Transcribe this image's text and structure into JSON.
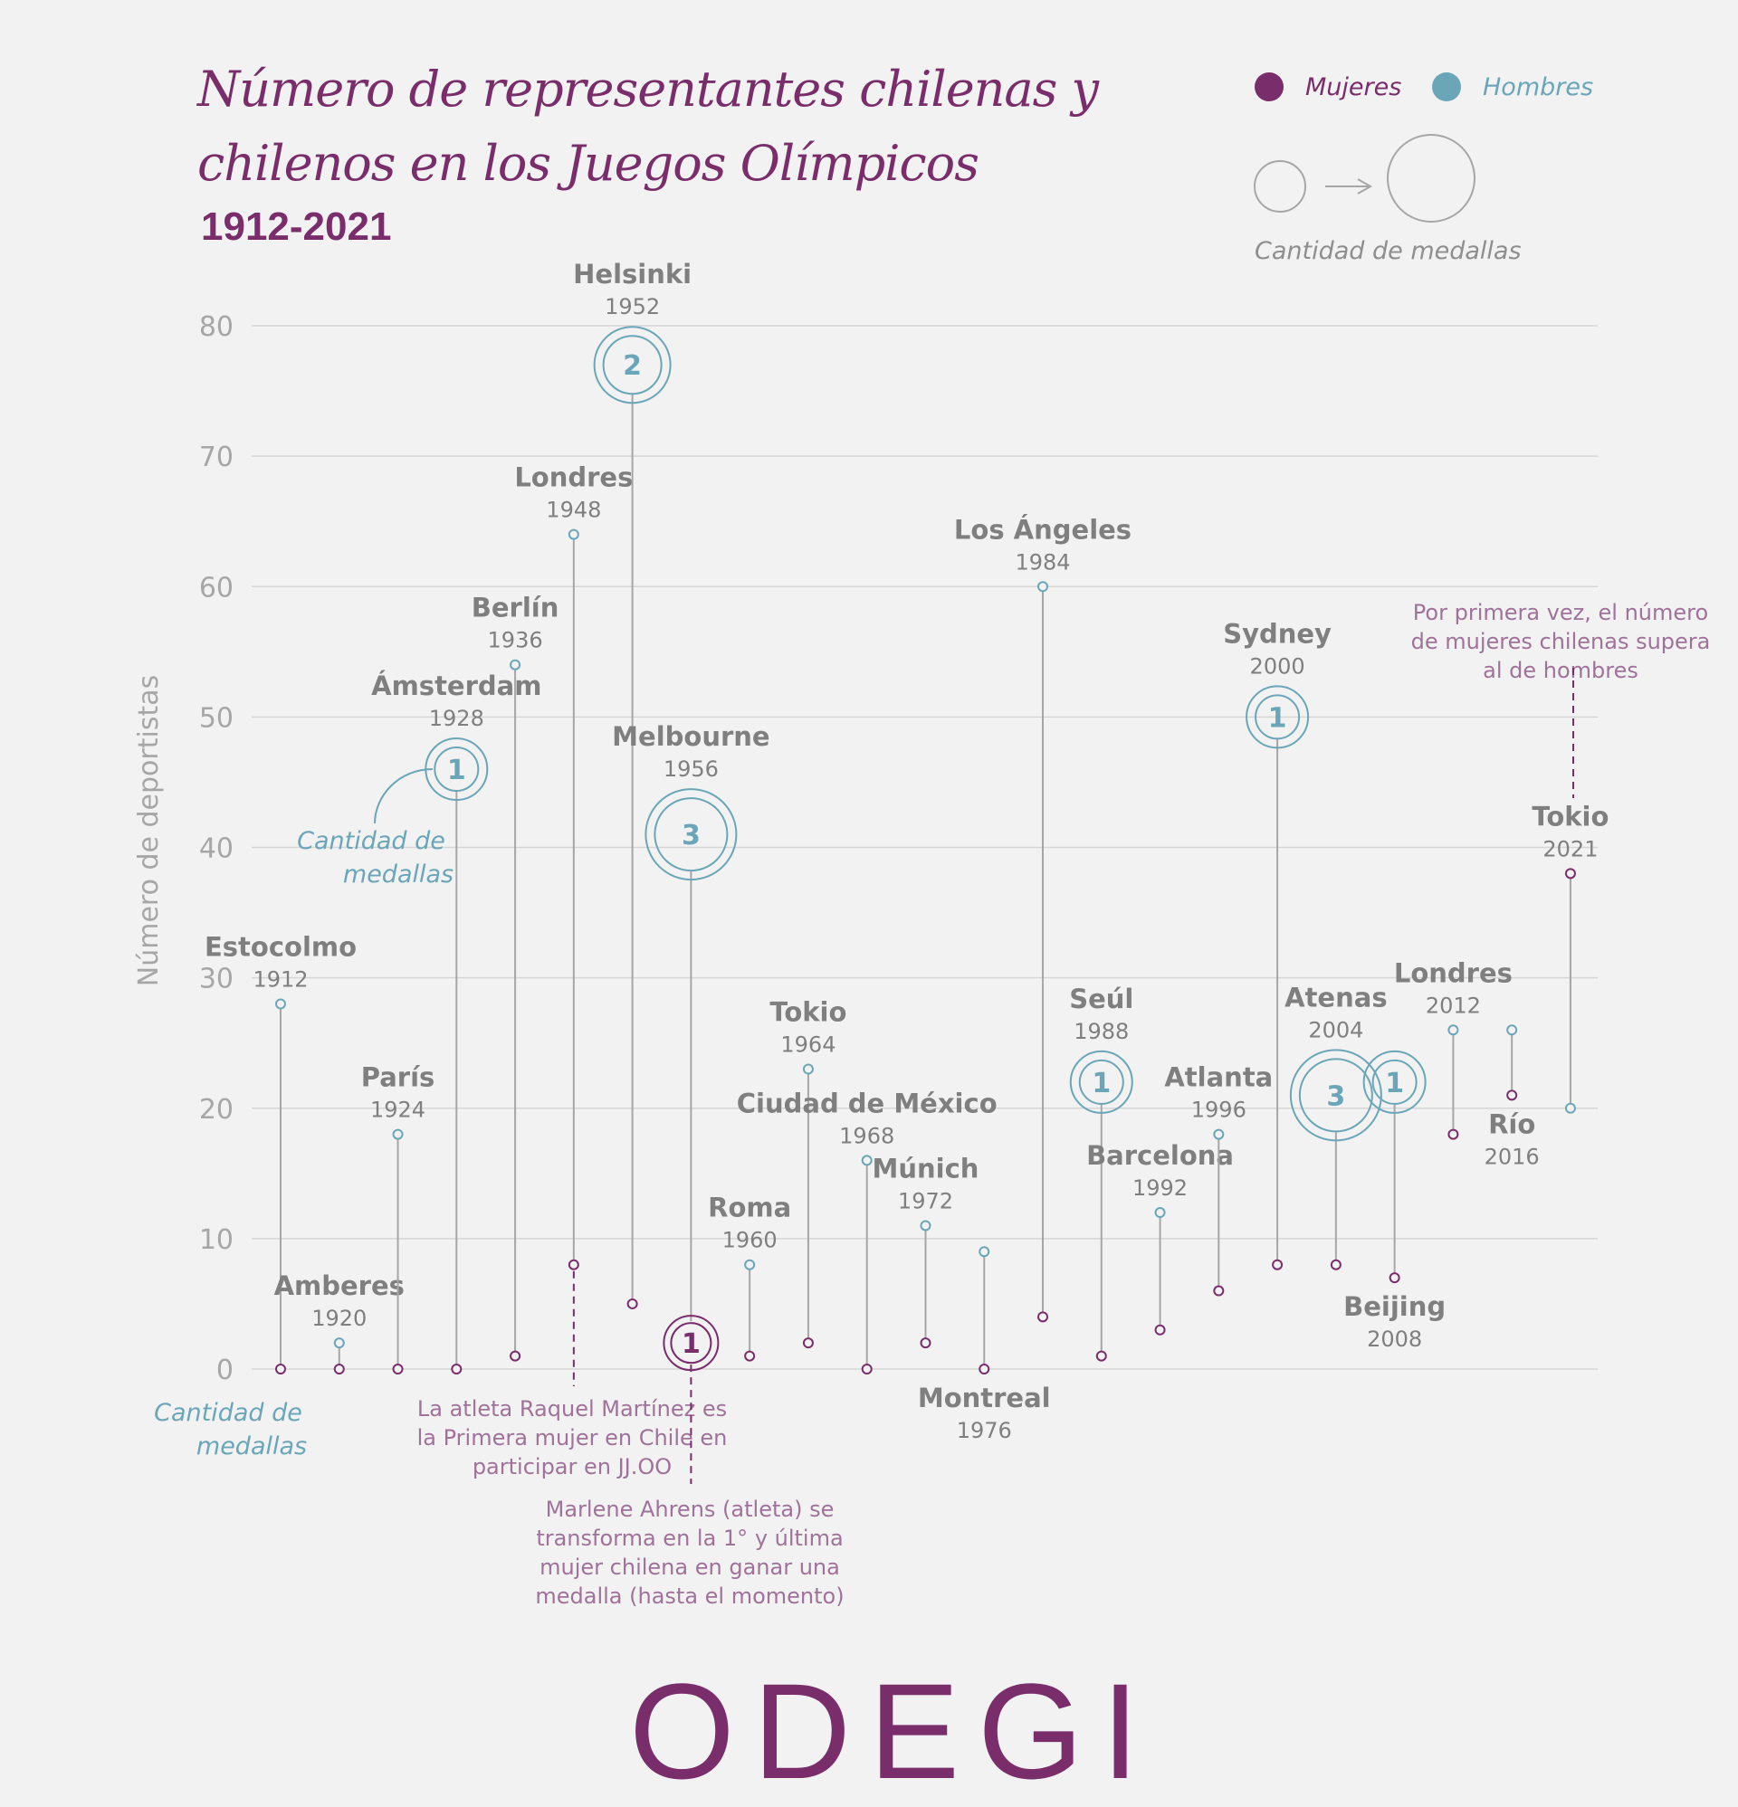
{
  "header": {
    "title_line1": "Número de  representantes chilenas y",
    "title_line2": "chilenos en los Juegos Olímpicos",
    "subtitle": "1912-2021"
  },
  "legend": {
    "women_label": "Mujeres",
    "men_label": "Hombres",
    "size_label": "Cantidad de medallas"
  },
  "colors": {
    "women": "#7a2d6b",
    "men": "#6aa6b8",
    "stem": "#a6a6a6",
    "grid": "#d6d6d6",
    "label": "#7f7f7f",
    "annotation": "#a0729a",
    "background": "#f2f2f2"
  },
  "chart_data": {
    "type": "dumbbell",
    "title": "Número de representantes chilenas y chilenos en los Juegos Olímpicos 1912-2021",
    "ylabel": "Número de deportistas",
    "xlabel": "",
    "ylim": [
      0,
      80
    ],
    "yticks": [
      0,
      10,
      20,
      30,
      40,
      50,
      60,
      70,
      80
    ],
    "grid": true,
    "legend_position": "top-right",
    "series_names": {
      "women": "Mujeres",
      "men": "Hombres"
    },
    "games": [
      {
        "city": "Estocolmo",
        "year": "1912",
        "men": 28,
        "women": 0,
        "men_medals": 0,
        "women_medals": 0,
        "label_pos": "above-men"
      },
      {
        "city": "Amberes",
        "year": "1920",
        "men": 2,
        "women": 0,
        "men_medals": 0,
        "women_medals": 0,
        "label_pos": "above-men"
      },
      {
        "city": "París",
        "year": "1924",
        "men": 18,
        "women": 0,
        "men_medals": 0,
        "women_medals": 0,
        "label_pos": "above-men"
      },
      {
        "city": "Ámsterdam",
        "year": "1928",
        "men": 46,
        "women": 0,
        "men_medals": 1,
        "women_medals": 0,
        "label_pos": "above-men"
      },
      {
        "city": "Berlín",
        "year": "1936",
        "men": 54,
        "women": 1,
        "men_medals": 0,
        "women_medals": 0,
        "label_pos": "above-men"
      },
      {
        "city": "Londres",
        "year": "1948",
        "men": 64,
        "women": 8,
        "men_medals": 0,
        "women_medals": 0,
        "label_pos": "above-men"
      },
      {
        "city": "Helsinki",
        "year": "1952",
        "men": 77,
        "women": 5,
        "men_medals": 2,
        "women_medals": 0,
        "label_pos": "above-men"
      },
      {
        "city": "Melbourne",
        "year": "1956",
        "men": 41,
        "women": 2,
        "men_medals": 3,
        "women_medals": 1,
        "label_pos": "above-men"
      },
      {
        "city": "Roma",
        "year": "1960",
        "men": 8,
        "women": 1,
        "men_medals": 0,
        "women_medals": 0,
        "label_pos": "above-men"
      },
      {
        "city": "Tokio",
        "year": "1964",
        "men": 23,
        "women": 2,
        "men_medals": 0,
        "women_medals": 0,
        "label_pos": "above-men"
      },
      {
        "city": "Ciudad de México",
        "year": "1968",
        "men": 16,
        "women": 0,
        "men_medals": 0,
        "women_medals": 0,
        "label_pos": "above-men"
      },
      {
        "city": "Múnich",
        "year": "1972",
        "men": 11,
        "women": 2,
        "men_medals": 0,
        "women_medals": 0,
        "label_pos": "above-men"
      },
      {
        "city": "Montreal",
        "year": "1976",
        "men": 9,
        "women": 0,
        "men_medals": 0,
        "women_medals": 0,
        "label_pos": "below-women"
      },
      {
        "city": "Los Ángeles",
        "year": "1984",
        "men": 60,
        "women": 4,
        "men_medals": 0,
        "women_medals": 0,
        "label_pos": "above-men"
      },
      {
        "city": "Seúl",
        "year": "1988",
        "men": 22,
        "women": 1,
        "men_medals": 1,
        "women_medals": 0,
        "label_pos": "above-men"
      },
      {
        "city": "Barcelona",
        "year": "1992",
        "men": 12,
        "women": 3,
        "men_medals": 0,
        "women_medals": 0,
        "label_pos": "above-men"
      },
      {
        "city": "Atlanta",
        "year": "1996",
        "men": 18,
        "women": 6,
        "men_medals": 0,
        "women_medals": 0,
        "label_pos": "above-men"
      },
      {
        "city": "Sydney",
        "year": "2000",
        "men": 50,
        "women": 8,
        "men_medals": 1,
        "women_medals": 0,
        "label_pos": "above-men"
      },
      {
        "city": "Atenas",
        "year": "2004",
        "men": 21,
        "women": 8,
        "men_medals": 3,
        "women_medals": 0,
        "label_pos": "above-men"
      },
      {
        "city": "Beijing",
        "year": "2008",
        "men": 22,
        "women": 7,
        "men_medals": 1,
        "women_medals": 0,
        "label_pos": "below-women"
      },
      {
        "city": "Londres",
        "year": "2012",
        "men": 26,
        "women": 18,
        "men_medals": 0,
        "women_medals": 0,
        "label_pos": "above-men"
      },
      {
        "city": "Río",
        "year": "2016",
        "men": 26,
        "women": 21,
        "men_medals": 0,
        "women_medals": 0,
        "label_pos": "below-women"
      },
      {
        "city": "Tokio",
        "year": "2021",
        "men": 20,
        "women": 38,
        "men_medals": 0,
        "women_medals": 0,
        "label_pos": "above-women"
      }
    ],
    "annotations": {
      "medal_callout": [
        "Cantidad de",
        "medallas"
      ],
      "medal_callout_bottom": [
        "Cantidad de",
        "medallas"
      ],
      "first_woman": [
        "La atleta Raquel Martínez es",
        "la Primera mujer en Chile en",
        "participar en JJ.OO"
      ],
      "first_medal_woman": [
        "Marlene Ahrens (atleta) se",
        "transforma en la 1° y última",
        "mujer chilena en ganar una",
        "medalla (hasta el momento)"
      ],
      "women_exceed": [
        "Por primera vez, el número",
        "de mujeres chilenas supera",
        "al de hombres"
      ]
    }
  },
  "footer": {
    "logo_text": "ODEGI"
  }
}
